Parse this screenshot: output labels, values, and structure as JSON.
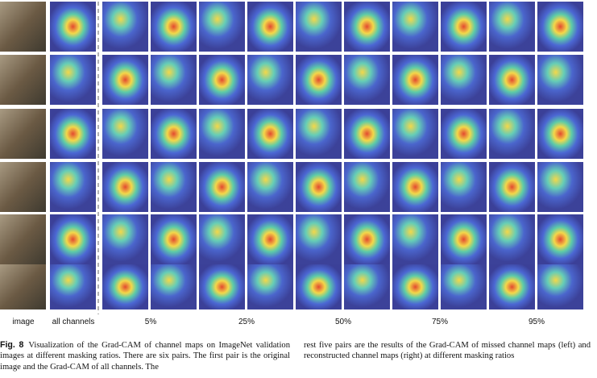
{
  "figure": {
    "column_labels": [
      "image",
      "all channels",
      "5%",
      "25%",
      "50%",
      "75%",
      "95%"
    ]
  },
  "caption": {
    "label": "Fig. 8",
    "text_left": "Visualization of the Grad-CAM of channel maps on ImageNet validation images at different masking ratios. There are six pairs. The first pair is the original image and the Grad-CAM of all channels. The",
    "text_right": "rest five pairs are the results of the Grad-CAM of missed channel maps (left) and reconstructed channel maps (right) at different masking ratios"
  }
}
